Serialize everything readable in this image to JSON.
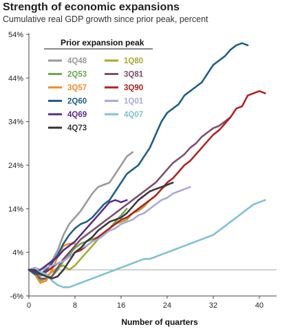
{
  "chart_data": {
    "type": "line",
    "title": "Strength of economic expansions",
    "subtitle": "Cumulative real GDP growth since prior peak, percent",
    "xlabel": "Number of quarters",
    "ylabel": "",
    "xlim": [
      0,
      43
    ],
    "ylim": [
      -6,
      54
    ],
    "x_ticks": [
      0,
      8,
      16,
      24,
      32,
      40
    ],
    "y_ticks": [
      -6,
      4,
      14,
      24,
      34,
      44,
      54
    ],
    "y_tick_labels": [
      "-6%",
      "4%",
      "14%",
      "24%",
      "34%",
      "44%",
      "54%"
    ],
    "grid": false,
    "legend": {
      "title": "Prior expansion peak",
      "placement": "top-left"
    },
    "series": [
      {
        "name": "4Q48",
        "color": "#9a9a9a",
        "values": [
          [
            0,
            0
          ],
          [
            1,
            -1
          ],
          [
            2,
            -1.5
          ],
          [
            3,
            -0.5
          ],
          [
            4,
            2
          ],
          [
            5,
            4.5
          ],
          [
            6,
            8
          ],
          [
            7,
            10.5
          ],
          [
            8,
            12
          ],
          [
            9,
            13.5
          ],
          [
            10,
            15.5
          ],
          [
            11,
            17.5
          ],
          [
            12,
            19
          ],
          [
            13,
            19.5
          ],
          [
            14,
            20
          ],
          [
            15,
            22
          ],
          [
            16,
            24
          ],
          [
            17,
            26
          ],
          [
            18,
            27
          ]
        ]
      },
      {
        "name": "1Q80",
        "color": "#a8a832",
        "values": [
          [
            0,
            0
          ],
          [
            1,
            0
          ],
          [
            2,
            -0.5
          ],
          [
            3,
            -1.5
          ],
          [
            4,
            -0.5
          ],
          [
            5,
            0.5
          ],
          [
            6,
            1
          ],
          [
            7,
            0
          ],
          [
            8,
            1
          ],
          [
            9,
            2.5
          ],
          [
            10,
            4
          ],
          [
            11,
            5.5
          ],
          [
            12,
            7
          ],
          [
            13,
            8
          ],
          [
            14,
            9.5
          ],
          [
            15,
            10.5
          ],
          [
            16,
            11
          ],
          [
            17,
            11.5
          ],
          [
            18,
            13
          ],
          [
            19,
            13.5
          ],
          [
            20,
            14.5
          ],
          [
            21,
            16
          ],
          [
            22,
            17
          ],
          [
            23,
            18.5
          ],
          [
            24,
            19.5
          ]
        ]
      },
      {
        "name": "2Q53",
        "color": "#6aa84f",
        "values": [
          [
            0,
            0
          ],
          [
            1,
            -1
          ],
          [
            2,
            -2.5
          ],
          [
            3,
            -2
          ],
          [
            4,
            -1.5
          ],
          [
            5,
            0
          ],
          [
            6,
            2
          ],
          [
            7,
            3.5
          ],
          [
            8,
            5
          ],
          [
            9,
            6
          ],
          [
            10,
            6.5
          ],
          [
            11,
            7
          ],
          [
            12,
            7.5
          ],
          [
            13,
            8
          ],
          [
            14,
            9.5
          ],
          [
            15,
            11
          ],
          [
            16,
            12.5
          ],
          [
            17,
            14
          ]
        ]
      },
      {
        "name": "3Q81",
        "color": "#7b4f6e",
        "values": [
          [
            0,
            0
          ],
          [
            1,
            -1
          ],
          [
            2,
            -2
          ],
          [
            3,
            -2
          ],
          [
            4,
            -1.5
          ],
          [
            5,
            0.5
          ],
          [
            6,
            2.5
          ],
          [
            7,
            4
          ],
          [
            8,
            5.5
          ],
          [
            9,
            7
          ],
          [
            10,
            8
          ],
          [
            11,
            9
          ],
          [
            12,
            10
          ],
          [
            13,
            11
          ],
          [
            14,
            12
          ],
          [
            15,
            13
          ],
          [
            16,
            14
          ],
          [
            17,
            15
          ],
          [
            18,
            16
          ],
          [
            19,
            17
          ],
          [
            20,
            18
          ],
          [
            21,
            19
          ],
          [
            22,
            20
          ],
          [
            23,
            21.5
          ],
          [
            24,
            23
          ],
          [
            25,
            24.5
          ],
          [
            26,
            25.5
          ],
          [
            27,
            26.5
          ],
          [
            28,
            28
          ],
          [
            29,
            29
          ],
          [
            30,
            30.5
          ],
          [
            31,
            31.5
          ],
          [
            32,
            32.5
          ],
          [
            33,
            33
          ],
          [
            34,
            34
          ],
          [
            35,
            35
          ]
        ]
      },
      {
        "name": "3Q57",
        "color": "#f08c2a",
        "values": [
          [
            0,
            0
          ],
          [
            1,
            -1
          ],
          [
            2,
            -3
          ],
          [
            3,
            -2.5
          ],
          [
            4,
            0
          ],
          [
            5,
            3
          ],
          [
            6,
            5.5
          ],
          [
            7,
            6
          ],
          [
            8,
            6
          ]
        ]
      },
      {
        "name": "3Q90",
        "color": "#b22222",
        "values": [
          [
            0,
            0
          ],
          [
            1,
            -0.5
          ],
          [
            2,
            -1
          ],
          [
            3,
            -0.5
          ],
          [
            4,
            0.5
          ],
          [
            5,
            1.5
          ],
          [
            6,
            2
          ],
          [
            7,
            3
          ],
          [
            8,
            4
          ],
          [
            9,
            4.5
          ],
          [
            10,
            5.5
          ],
          [
            11,
            6.5
          ],
          [
            12,
            7.5
          ],
          [
            13,
            8.5
          ],
          [
            14,
            9.5
          ],
          [
            15,
            10.5
          ],
          [
            16,
            11.5
          ],
          [
            17,
            12
          ],
          [
            18,
            13
          ],
          [
            19,
            14
          ],
          [
            20,
            15
          ],
          [
            21,
            16
          ],
          [
            22,
            17
          ],
          [
            23,
            18.5
          ],
          [
            24,
            20
          ],
          [
            25,
            21
          ],
          [
            26,
            22.5
          ],
          [
            27,
            24
          ],
          [
            28,
            25
          ],
          [
            29,
            26.5
          ],
          [
            30,
            28
          ],
          [
            31,
            29.5
          ],
          [
            32,
            31
          ],
          [
            33,
            32
          ],
          [
            34,
            33.5
          ],
          [
            35,
            35
          ],
          [
            36,
            37
          ],
          [
            37,
            37.5
          ],
          [
            38,
            40
          ],
          [
            39,
            40.5
          ],
          [
            40,
            41
          ],
          [
            41,
            40.5
          ]
        ]
      },
      {
        "name": "2Q60",
        "color": "#1f5f85",
        "values": [
          [
            0,
            0
          ],
          [
            1,
            -1
          ],
          [
            2,
            -1
          ],
          [
            3,
            0
          ],
          [
            4,
            1.5
          ],
          [
            5,
            3.5
          ],
          [
            6,
            6
          ],
          [
            7,
            8
          ],
          [
            8,
            9.5
          ],
          [
            9,
            10.5
          ],
          [
            10,
            11
          ],
          [
            11,
            12
          ],
          [
            12,
            13.5
          ],
          [
            13,
            15
          ],
          [
            14,
            16
          ],
          [
            15,
            18
          ],
          [
            16,
            20
          ],
          [
            17,
            22
          ],
          [
            18,
            23
          ],
          [
            19,
            24
          ],
          [
            20,
            26
          ],
          [
            21,
            28
          ],
          [
            22,
            31
          ],
          [
            23,
            34
          ],
          [
            24,
            36
          ],
          [
            25,
            37
          ],
          [
            26,
            38
          ],
          [
            27,
            40
          ],
          [
            28,
            41
          ],
          [
            29,
            42
          ],
          [
            30,
            43
          ],
          [
            31,
            45
          ],
          [
            32,
            47
          ],
          [
            33,
            48
          ],
          [
            34,
            49
          ],
          [
            35,
            50.5
          ],
          [
            36,
            51.5
          ],
          [
            37,
            52
          ],
          [
            38,
            51.5
          ]
        ]
      },
      {
        "name": "1Q01",
        "color": "#a9a9dd",
        "values": [
          [
            0,
            0
          ],
          [
            1,
            0.5
          ],
          [
            2,
            0
          ],
          [
            3,
            0.5
          ],
          [
            4,
            1
          ],
          [
            5,
            1.5
          ],
          [
            6,
            2
          ],
          [
            7,
            3
          ],
          [
            8,
            4
          ],
          [
            9,
            5
          ],
          [
            10,
            5.5
          ],
          [
            11,
            6.5
          ],
          [
            12,
            7
          ],
          [
            13,
            8
          ],
          [
            14,
            9
          ],
          [
            15,
            9.5
          ],
          [
            16,
            10.5
          ],
          [
            17,
            11
          ],
          [
            18,
            11.5
          ],
          [
            19,
            12.5
          ],
          [
            20,
            13
          ],
          [
            21,
            14
          ],
          [
            22,
            15
          ],
          [
            23,
            16
          ],
          [
            24,
            16.5
          ],
          [
            25,
            17.5
          ],
          [
            26,
            18
          ],
          [
            27,
            18.5
          ],
          [
            28,
            19
          ]
        ]
      },
      {
        "name": "4Q69",
        "color": "#5b2a86",
        "values": [
          [
            0,
            0
          ],
          [
            1,
            -0.5
          ],
          [
            2,
            0
          ],
          [
            3,
            1
          ],
          [
            4,
            2
          ],
          [
            5,
            3
          ],
          [
            6,
            4.5
          ],
          [
            7,
            5.5
          ],
          [
            8,
            6.5
          ],
          [
            9,
            8
          ],
          [
            10,
            9.5
          ],
          [
            11,
            11
          ],
          [
            12,
            12.5
          ],
          [
            13,
            14
          ],
          [
            14,
            15.5
          ],
          [
            15,
            16
          ],
          [
            16,
            15.5
          ],
          [
            17,
            16
          ]
        ]
      },
      {
        "name": "4Q07",
        "color": "#7fc1d4",
        "values": [
          [
            0,
            0
          ],
          [
            1,
            0
          ],
          [
            2,
            -0.5
          ],
          [
            3,
            -1
          ],
          [
            4,
            -2.5
          ],
          [
            5,
            -3.5
          ],
          [
            6,
            -4
          ],
          [
            7,
            -4
          ],
          [
            8,
            -3.5
          ],
          [
            9,
            -3
          ],
          [
            10,
            -2.5
          ],
          [
            11,
            -2
          ],
          [
            12,
            -1.5
          ],
          [
            13,
            -1
          ],
          [
            14,
            -0.5
          ],
          [
            15,
            0
          ],
          [
            16,
            0.5
          ],
          [
            17,
            1
          ],
          [
            18,
            1.5
          ],
          [
            19,
            2
          ],
          [
            20,
            2.5
          ],
          [
            21,
            2.5
          ],
          [
            22,
            3
          ],
          [
            23,
            3.5
          ],
          [
            24,
            4
          ],
          [
            25,
            4.5
          ],
          [
            26,
            5
          ],
          [
            27,
            5.5
          ],
          [
            28,
            6
          ],
          [
            29,
            6.5
          ],
          [
            30,
            7
          ],
          [
            31,
            7.5
          ],
          [
            32,
            8
          ],
          [
            33,
            9
          ],
          [
            34,
            10
          ],
          [
            35,
            11
          ],
          [
            36,
            12
          ],
          [
            37,
            13
          ],
          [
            38,
            14
          ],
          [
            39,
            15
          ],
          [
            40,
            15.5
          ],
          [
            41,
            16
          ]
        ]
      },
      {
        "name": "4Q73",
        "color": "#3a3a3a",
        "values": [
          [
            0,
            0
          ],
          [
            1,
            0
          ],
          [
            2,
            -1
          ],
          [
            3,
            -1.5
          ],
          [
            4,
            -2
          ],
          [
            5,
            -1.5
          ],
          [
            6,
            0
          ],
          [
            7,
            2
          ],
          [
            8,
            4
          ],
          [
            9,
            5
          ],
          [
            10,
            6.5
          ],
          [
            11,
            7.5
          ],
          [
            12,
            9
          ],
          [
            13,
            10
          ],
          [
            14,
            11
          ],
          [
            15,
            11.5
          ],
          [
            16,
            12
          ],
          [
            17,
            13
          ],
          [
            18,
            14.5
          ],
          [
            19,
            16
          ],
          [
            20,
            17
          ],
          [
            21,
            18
          ],
          [
            22,
            18.5
          ],
          [
            23,
            19
          ],
          [
            24,
            19.5
          ],
          [
            25,
            20
          ]
        ]
      }
    ]
  }
}
